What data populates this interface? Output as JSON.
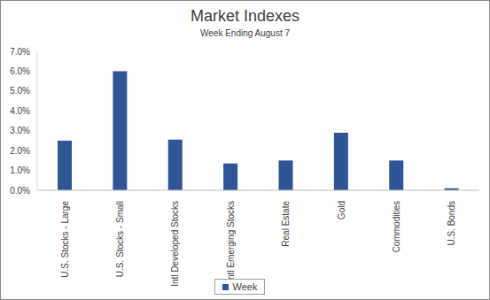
{
  "chart_data": {
    "type": "bar",
    "title": "Market Indexes",
    "subtitle": "Week Ending August 7",
    "categories": [
      "U.S. Stocks - Large",
      "U.S. Stocks - Small",
      "Intl Developed Stocks",
      "Intl Emerging Stocks",
      "Real Estate",
      "Gold",
      "Commodities",
      "U.S. Bonds"
    ],
    "series": [
      {
        "name": "Week",
        "color": "#2f5597",
        "values": [
          2.5,
          6.0,
          2.55,
          1.35,
          1.5,
          2.9,
          1.5,
          0.1
        ]
      }
    ],
    "ylim": [
      0,
      7
    ],
    "yticks": [
      {
        "value": 0,
        "label": "0.0%"
      },
      {
        "value": 1,
        "label": "1.0%"
      },
      {
        "value": 2,
        "label": "2.0%"
      },
      {
        "value": 3,
        "label": "3.0%"
      },
      {
        "value": 4,
        "label": "4.0%"
      },
      {
        "value": 5,
        "label": "5.0%"
      },
      {
        "value": 6,
        "label": "6.0%"
      },
      {
        "value": 7,
        "label": "7.0%"
      }
    ],
    "grid": false,
    "legend": "bottom",
    "data_labels": false
  }
}
